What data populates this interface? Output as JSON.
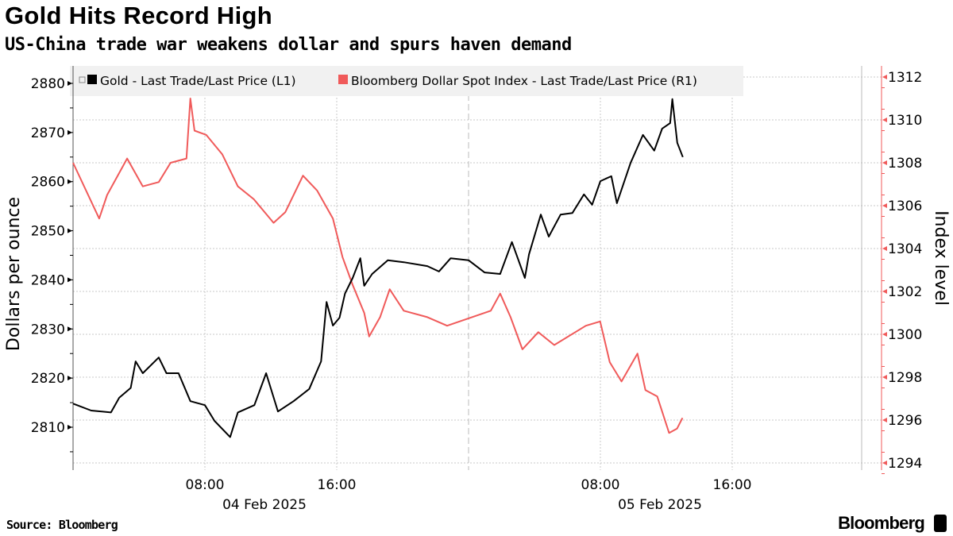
{
  "title": "Gold Hits Record High",
  "subtitle": "US-China trade war weakens dollar and spurs haven demand",
  "source": "Source: Bloomberg",
  "brand": "Bloomberg",
  "chart_data": {
    "type": "line",
    "title": "Gold Hits Record High",
    "subtitle": "US-China trade war weakens dollar and spurs haven demand",
    "x_range": [
      "2025-02-04 00:00",
      "2025-02-06 00:00"
    ],
    "x_ticks": [
      {
        "time": "2025-02-04 08:00",
        "label": "08:00"
      },
      {
        "time": "2025-02-04 16:00",
        "label": "16:00"
      },
      {
        "time": "2025-02-05 08:00",
        "label": "08:00"
      },
      {
        "time": "2025-02-05 16:00",
        "label": "16:00"
      }
    ],
    "date_labels": [
      {
        "time": "2025-02-04 12:00",
        "label": "04 Feb 2025"
      },
      {
        "time": "2025-02-05 12:00",
        "label": "05 Feb 2025"
      }
    ],
    "day_boundary": "2025-02-05 00:00",
    "left_axis": {
      "label": "Dollars per ounce",
      "range": [
        2803.5,
        2882
      ],
      "ticks": [
        2810,
        2820,
        2830,
        2840,
        2850,
        2860,
        2870,
        2880
      ]
    },
    "right_axis": {
      "label": "Index level",
      "range": [
        1293.3,
        1312.3
      ],
      "ticks": [
        1294,
        1296,
        1298,
        1300,
        1302,
        1304,
        1306,
        1308,
        1310,
        1312
      ],
      "color": "#f05a5a"
    },
    "grid": true,
    "legend_placement": "top-left",
    "series": [
      {
        "name": "Gold - Last Trade/Last Price (L1)",
        "axis": "left",
        "color": "#000000",
        "points": [
          [
            "2025-02-04 00:00",
            2814.8
          ],
          [
            "2025-02-04 01:06",
            2813.4
          ],
          [
            "2025-02-04 02:18",
            2813.0
          ],
          [
            "2025-02-04 02:48",
            2816.0
          ],
          [
            "2025-02-04 03:30",
            2818.0
          ],
          [
            "2025-02-04 03:48",
            2823.4
          ],
          [
            "2025-02-04 04:14",
            2821.0
          ],
          [
            "2025-02-04 05:12",
            2824.2
          ],
          [
            "2025-02-04 05:40",
            2821.0
          ],
          [
            "2025-02-04 06:24",
            2821.0
          ],
          [
            "2025-02-04 07:07",
            2815.3
          ],
          [
            "2025-02-04 08:00",
            2814.5
          ],
          [
            "2025-02-04 08:35",
            2811.3
          ],
          [
            "2025-02-04 09:32",
            2808.0
          ],
          [
            "2025-02-04 10:00",
            2813.0
          ],
          [
            "2025-02-04 11:00",
            2814.5
          ],
          [
            "2025-02-04 11:43",
            2821.0
          ],
          [
            "2025-02-04 12:26",
            2813.2
          ],
          [
            "2025-02-04 13:23",
            2815.3
          ],
          [
            "2025-02-04 14:20",
            2817.8
          ],
          [
            "2025-02-04 15:03",
            2823.4
          ],
          [
            "2025-02-04 15:23",
            2835.5
          ],
          [
            "2025-02-04 15:46",
            2830.7
          ],
          [
            "2025-02-04 16:10",
            2832.3
          ],
          [
            "2025-02-04 16:30",
            2837.2
          ],
          [
            "2025-02-04 16:58",
            2840.4
          ],
          [
            "2025-02-04 17:26",
            2844.4
          ],
          [
            "2025-02-04 17:40",
            2838.8
          ],
          [
            "2025-02-04 18:09",
            2841.2
          ],
          [
            "2025-02-04 19:06",
            2844.0
          ],
          [
            "2025-02-04 20:04",
            2843.6
          ],
          [
            "2025-02-04 21:30",
            2842.8
          ],
          [
            "2025-02-04 22:12",
            2841.7
          ],
          [
            "2025-02-04 22:55",
            2844.4
          ],
          [
            "2025-02-05 00:00",
            2844.0
          ],
          [
            "2025-02-05 00:58",
            2841.5
          ],
          [
            "2025-02-05 01:55",
            2841.2
          ],
          [
            "2025-02-05 02:38",
            2847.7
          ],
          [
            "2025-02-05 03:25",
            2840.4
          ],
          [
            "2025-02-05 03:40",
            2845.2
          ],
          [
            "2025-02-05 04:23",
            2853.3
          ],
          [
            "2025-02-05 04:52",
            2848.8
          ],
          [
            "2025-02-05 05:35",
            2853.3
          ],
          [
            "2025-02-05 06:18",
            2853.6
          ],
          [
            "2025-02-05 07:00",
            2857.4
          ],
          [
            "2025-02-05 07:30",
            2855.3
          ],
          [
            "2025-02-05 08:00",
            2860.1
          ],
          [
            "2025-02-05 08:40",
            2861.1
          ],
          [
            "2025-02-05 09:00",
            2855.6
          ],
          [
            "2025-02-05 09:50",
            2863.8
          ],
          [
            "2025-02-05 10:35",
            2869.5
          ],
          [
            "2025-02-05 11:16",
            2866.3
          ],
          [
            "2025-02-05 11:45",
            2870.8
          ],
          [
            "2025-02-05 12:14",
            2871.9
          ],
          [
            "2025-02-05 12:22",
            2876.8
          ],
          [
            "2025-02-05 12:40",
            2867.9
          ],
          [
            "2025-02-05 13:00",
            2865.0
          ]
        ]
      },
      {
        "name": "Bloomberg Dollar Spot Index - Last Trade/Last Price (R1)",
        "axis": "right",
        "color": "#f05a5a",
        "points": [
          [
            "2025-02-04 00:00",
            1308.0
          ],
          [
            "2025-02-04 01:35",
            1305.4
          ],
          [
            "2025-02-04 02:04",
            1306.5
          ],
          [
            "2025-02-04 03:17",
            1308.2
          ],
          [
            "2025-02-04 04:14",
            1306.9
          ],
          [
            "2025-02-04 05:12",
            1307.1
          ],
          [
            "2025-02-04 05:55",
            1308.0
          ],
          [
            "2025-02-04 06:53",
            1308.2
          ],
          [
            "2025-02-04 07:07",
            1311.0
          ],
          [
            "2025-02-04 07:22",
            1309.5
          ],
          [
            "2025-02-04 08:05",
            1309.3
          ],
          [
            "2025-02-04 09:03",
            1308.4
          ],
          [
            "2025-02-04 10:00",
            1306.9
          ],
          [
            "2025-02-04 10:58",
            1306.3
          ],
          [
            "2025-02-04 12:10",
            1305.2
          ],
          [
            "2025-02-04 12:53",
            1305.7
          ],
          [
            "2025-02-04 13:57",
            1307.4
          ],
          [
            "2025-02-04 14:49",
            1306.7
          ],
          [
            "2025-02-04 15:46",
            1305.4
          ],
          [
            "2025-02-04 16:21",
            1303.6
          ],
          [
            "2025-02-04 16:58",
            1302.3
          ],
          [
            "2025-02-04 17:40",
            1301.0
          ],
          [
            "2025-02-04 17:58",
            1299.9
          ],
          [
            "2025-02-04 18:38",
            1300.8
          ],
          [
            "2025-02-04 19:13",
            1302.1
          ],
          [
            "2025-02-04 20:04",
            1301.1
          ],
          [
            "2025-02-04 21:30",
            1300.8
          ],
          [
            "2025-02-04 22:42",
            1300.4
          ],
          [
            "2025-02-05 01:21",
            1301.1
          ],
          [
            "2025-02-05 01:55",
            1301.9
          ],
          [
            "2025-02-05 02:33",
            1300.8
          ],
          [
            "2025-02-05 03:16",
            1299.3
          ],
          [
            "2025-02-05 04:14",
            1300.1
          ],
          [
            "2025-02-05 05:12",
            1299.5
          ],
          [
            "2025-02-05 07:07",
            1300.4
          ],
          [
            "2025-02-05 07:59",
            1300.6
          ],
          [
            "2025-02-05 08:34",
            1298.7
          ],
          [
            "2025-02-05 09:17",
            1297.8
          ],
          [
            "2025-02-05 10:15",
            1299.1
          ],
          [
            "2025-02-05 10:44",
            1297.4
          ],
          [
            "2025-02-05 11:27",
            1297.1
          ],
          [
            "2025-02-05 12:10",
            1295.4
          ],
          [
            "2025-02-05 12:39",
            1295.6
          ],
          [
            "2025-02-05 12:59",
            1296.1
          ]
        ]
      }
    ]
  }
}
